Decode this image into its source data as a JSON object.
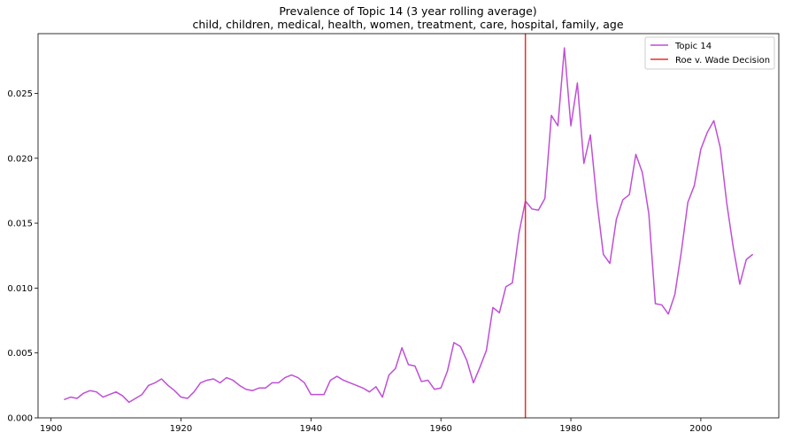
{
  "chart_data": {
    "type": "line",
    "title": "Prevalence of Topic 14 (3 year rolling average)",
    "subtitle": "child, children, medical, health, women, treatment, care, hospital, family, age",
    "xlabel": "",
    "ylabel": "",
    "xlim": [
      1898,
      2012
    ],
    "ylim": [
      0,
      0.0296
    ],
    "xticks": [
      1900,
      1920,
      1940,
      1960,
      1980,
      2000
    ],
    "yticks": [
      0.0,
      0.005,
      0.01,
      0.015,
      0.02,
      0.025
    ],
    "ytick_labels": [
      "0.000",
      "0.005",
      "0.010",
      "0.015",
      "0.020",
      "0.025"
    ],
    "grid": false,
    "legend_position": "top-right",
    "series": [
      {
        "name": "Topic 14",
        "color": "#bf4fd6",
        "x": [
          1902,
          1903,
          1904,
          1905,
          1906,
          1907,
          1908,
          1909,
          1910,
          1911,
          1912,
          1913,
          1914,
          1915,
          1916,
          1917,
          1918,
          1919,
          1920,
          1921,
          1922,
          1923,
          1924,
          1925,
          1926,
          1927,
          1928,
          1929,
          1930,
          1931,
          1932,
          1933,
          1934,
          1935,
          1936,
          1937,
          1938,
          1939,
          1940,
          1941,
          1942,
          1943,
          1944,
          1945,
          1946,
          1947,
          1948,
          1949,
          1950,
          1951,
          1952,
          1953,
          1954,
          1955,
          1956,
          1957,
          1958,
          1959,
          1960,
          1961,
          1962,
          1963,
          1964,
          1965,
          1966,
          1967,
          1968,
          1969,
          1970,
          1971,
          1972,
          1973,
          1974,
          1975,
          1976,
          1977,
          1978,
          1979,
          1980,
          1981,
          1982,
          1983,
          1984,
          1985,
          1986,
          1987,
          1988,
          1989,
          1990,
          1991,
          1992,
          1993,
          1994,
          1995,
          1996,
          1997,
          1998,
          1999,
          2000,
          2001,
          2002,
          2003,
          2004,
          2005,
          2006,
          2007,
          2008
        ],
        "values": [
          0.0014,
          0.0016,
          0.0015,
          0.0019,
          0.0021,
          0.002,
          0.0016,
          0.0018,
          0.002,
          0.0017,
          0.0012,
          0.0015,
          0.0018,
          0.0025,
          0.0027,
          0.003,
          0.0025,
          0.0021,
          0.0016,
          0.0015,
          0.002,
          0.0027,
          0.0029,
          0.003,
          0.0027,
          0.0031,
          0.0029,
          0.0025,
          0.0022,
          0.0021,
          0.0023,
          0.0023,
          0.0027,
          0.0027,
          0.0031,
          0.0033,
          0.0031,
          0.0027,
          0.0018,
          0.0018,
          0.0018,
          0.0029,
          0.0032,
          0.0029,
          0.0027,
          0.0025,
          0.0023,
          0.002,
          0.0024,
          0.0016,
          0.0033,
          0.0038,
          0.0054,
          0.0041,
          0.004,
          0.0028,
          0.0029,
          0.0022,
          0.0023,
          0.0036,
          0.0058,
          0.0055,
          0.0044,
          0.0027,
          0.0039,
          0.0052,
          0.0085,
          0.0081,
          0.0101,
          0.0104,
          0.0142,
          0.0167,
          0.0161,
          0.016,
          0.0169,
          0.0233,
          0.0225,
          0.0285,
          0.0225,
          0.0258,
          0.0196,
          0.0218,
          0.0167,
          0.0126,
          0.0119,
          0.0153,
          0.0168,
          0.0172,
          0.0203,
          0.0189,
          0.0157,
          0.0088,
          0.0087,
          0.008,
          0.0095,
          0.0128,
          0.0166,
          0.0179,
          0.0207,
          0.022,
          0.0229,
          0.0208,
          0.0165,
          0.0131,
          0.0103,
          0.0122,
          0.0126
        ]
      }
    ],
    "vlines": [
      {
        "name": "Roe v. Wade Decision",
        "x": 1973,
        "color": "#e8302f"
      }
    ]
  }
}
